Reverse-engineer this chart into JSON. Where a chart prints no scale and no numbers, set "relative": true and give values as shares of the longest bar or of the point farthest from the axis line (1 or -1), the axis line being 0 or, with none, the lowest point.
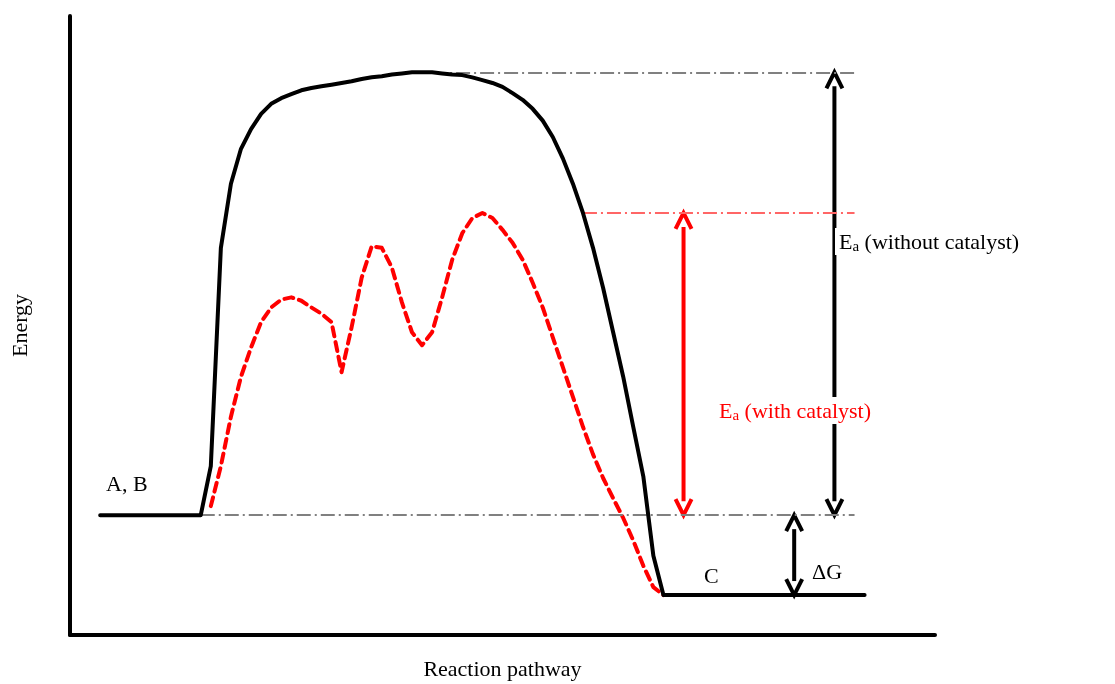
{
  "chart_data": {
    "type": "line",
    "relative": true,
    "xlabel": "Reaction pathway",
    "ylabel": "Energy",
    "categories": [
      null,
      null,
      null,
      null,
      null,
      null,
      null,
      null,
      null,
      null,
      null,
      null,
      null,
      null,
      null,
      null,
      null,
      null,
      null,
      null,
      null,
      null,
      null,
      null,
      null,
      null,
      null,
      null,
      null,
      null,
      null,
      null,
      null,
      null,
      null,
      null,
      null,
      null,
      null,
      null,
      null,
      null,
      null,
      null,
      null,
      null,
      null,
      null,
      null,
      null,
      null,
      null,
      null,
      null,
      null,
      null,
      null,
      null,
      null,
      null,
      null,
      null,
      null,
      null,
      null,
      null,
      null,
      null,
      null,
      null,
      null,
      null,
      null,
      null,
      null,
      null,
      null,
      null,
      null,
      null,
      null,
      null,
      null,
      null,
      null,
      null,
      null
    ],
    "series": [
      {
        "color": "#000000",
        "line_style": "solid",
        "values": [
          null,
          null,
          null,
          0.213,
          0.213,
          0.213,
          0.213,
          0.213,
          0.213,
          0.213,
          0.213,
          0.213,
          0.213,
          0.213,
          0.3,
          0.688,
          0.802,
          0.864,
          0.899,
          0.926,
          0.944,
          0.954,
          0.961,
          0.968,
          0.972,
          0.975,
          0.978,
          0.981,
          0.984,
          0.988,
          0.991,
          0.993,
          0.996,
          0.998,
          1,
          1,
          1,
          0.998,
          0.996,
          0.995,
          0.991,
          0.986,
          0.981,
          0.974,
          0.963,
          0.951,
          0.935,
          0.914,
          0.885,
          0.847,
          0.802,
          0.75,
          0.688,
          0.617,
          0.538,
          0.459,
          0.37,
          0.282,
          0.141,
          0.071,
          0.071,
          0.071,
          0.071,
          0.071,
          0.071,
          0.071,
          0.071,
          0.071,
          0.071,
          0.071,
          0.071,
          0.071,
          0.071,
          0.071,
          0.071,
          0.071,
          0.071,
          0.071,
          0.071,
          0.071,
          null,
          null,
          null,
          null,
          null,
          null,
          null
        ]
      },
      {
        "color": "#ff0000",
        "line_style": "dashed",
        "values": [
          null,
          null,
          null,
          null,
          null,
          null,
          null,
          null,
          null,
          null,
          null,
          null,
          null,
          null,
          0.229,
          0.3,
          0.388,
          0.459,
          0.511,
          0.556,
          0.582,
          0.596,
          0.6,
          0.594,
          0.582,
          0.571,
          0.556,
          0.467,
          0.547,
          0.635,
          0.691,
          0.688,
          0.653,
          0.591,
          0.538,
          0.515,
          0.538,
          0.6,
          0.667,
          0.714,
          0.741,
          0.75,
          0.741,
          0.72,
          0.697,
          0.667,
          0.626,
          0.582,
          0.529,
          0.476,
          0.423,
          0.37,
          0.321,
          0.279,
          0.243,
          0.208,
          0.168,
          0.123,
          0.085,
          0.071,
          null,
          null,
          null,
          null,
          null,
          null,
          null,
          null,
          null,
          null,
          null,
          null,
          null,
          null,
          null,
          null,
          null,
          null,
          null,
          null,
          null,
          null,
          null,
          null,
          null,
          null,
          null
        ]
      }
    ],
    "ref_lines": [
      {
        "axis": "y",
        "value": 1,
        "color": "#808080",
        "line_style": "dashed"
      },
      {
        "axis": "y",
        "value": 0.75,
        "color": "#ff6666",
        "line_style": "dashed"
      },
      {
        "axis": "y",
        "value": 0.213,
        "color": "#808080",
        "line_style": "dashed"
      }
    ],
    "annotations": [
      "A, B",
      "C",
      "E$_{a}$ (without catalyst)",
      "E$_{a}$ (with catalyst)",
      "ΔG"
    ],
    "marker": "none",
    "grid": false
  }
}
